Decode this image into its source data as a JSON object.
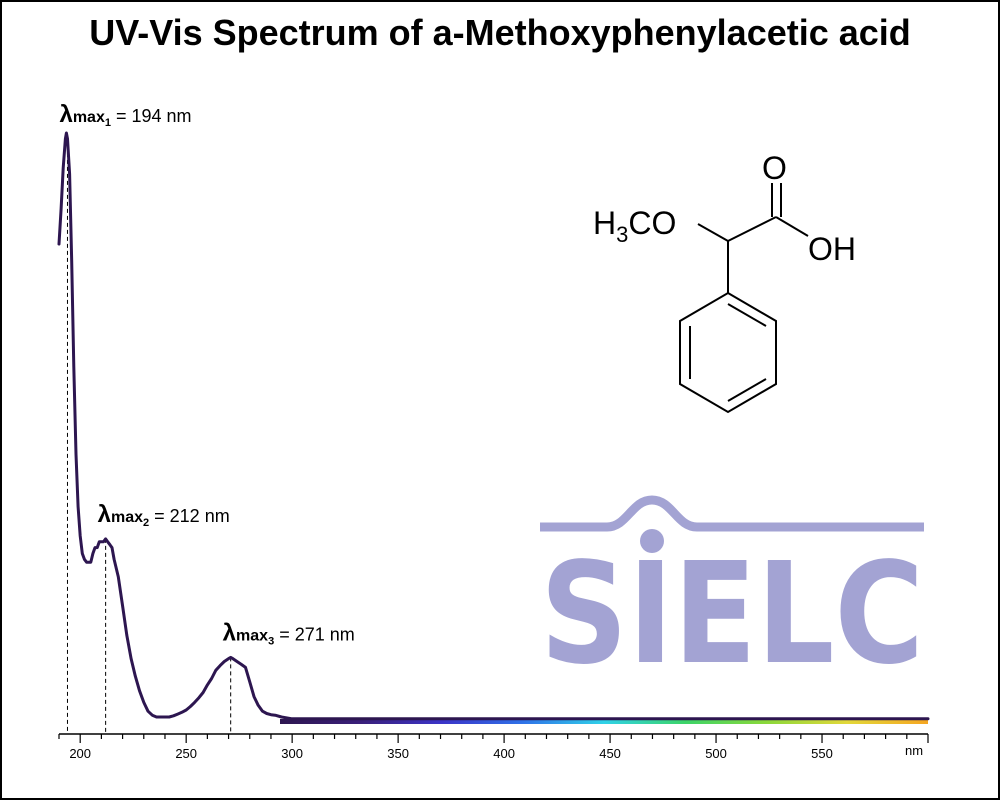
{
  "title": "UV-Vis Spectrum of a-Methoxyphenylacetic acid",
  "logo_text": "SIELC",
  "logo_color": "#a3a3d3",
  "molecule": {
    "group_left": "H3CO",
    "group_left_parts": [
      "H",
      "3",
      "CO"
    ],
    "carbonyl_o": "O",
    "hydroxyl": "OH"
  },
  "chart_data": {
    "type": "line",
    "title": "UV-Vis Spectrum of a-Methoxyphenylacetic acid",
    "xlabel": "nm",
    "ylabel": "",
    "xlim": [
      190,
      600
    ],
    "ylim": [
      0,
      1
    ],
    "x_ticks_labeled": [
      200,
      250,
      300,
      350,
      400,
      450,
      500,
      550
    ],
    "x_unit_label": "nm",
    "grid": false,
    "line_color": "#2d1650",
    "series": [
      {
        "x": [
          190,
          191,
          192,
          193,
          193.5,
          194,
          195,
          196,
          197,
          198,
          199,
          200,
          201,
          202,
          203,
          204,
          205,
          206,
          207,
          208,
          209,
          210,
          211,
          212,
          213,
          214,
          215,
          216,
          218,
          220,
          222,
          224,
          226,
          228,
          230,
          232,
          234,
          236,
          238,
          240,
          242,
          244,
          246,
          248,
          250,
          252,
          254,
          256,
          258,
          260,
          262,
          264,
          266,
          268,
          270,
          271,
          272,
          274,
          276,
          278,
          280,
          282,
          284,
          286,
          288,
          290,
          292,
          295,
          300,
          350,
          400,
          450,
          500,
          550,
          600
        ],
        "values": [
          0.81,
          0.87,
          0.94,
          0.99,
          1.0,
          0.99,
          0.93,
          0.78,
          0.6,
          0.45,
          0.36,
          0.31,
          0.28,
          0.27,
          0.265,
          0.265,
          0.265,
          0.28,
          0.29,
          0.29,
          0.3,
          0.3,
          0.3,
          0.305,
          0.3,
          0.295,
          0.29,
          0.27,
          0.24,
          0.19,
          0.14,
          0.1,
          0.07,
          0.045,
          0.025,
          0.01,
          0.003,
          0.0,
          0.0,
          0.0,
          0.0,
          0.002,
          0.005,
          0.008,
          0.012,
          0.018,
          0.025,
          0.033,
          0.042,
          0.055,
          0.066,
          0.08,
          0.088,
          0.095,
          0.1,
          0.102,
          0.1,
          0.095,
          0.09,
          0.085,
          0.06,
          0.035,
          0.02,
          0.01,
          0.006,
          0.004,
          0.003,
          0.0,
          -0.003,
          -0.003,
          -0.003,
          -0.003,
          -0.003,
          -0.003,
          -0.003
        ]
      }
    ],
    "annotations": [
      {
        "symbol": "λ",
        "sub_main": "max",
        "sub_index": "1",
        "text": " = 194 nm",
        "x": 194
      },
      {
        "symbol": "λ",
        "sub_main": "max",
        "sub_index": "2",
        "text": " = 212 nm",
        "x": 212
      },
      {
        "symbol": "λ",
        "sub_main": "max",
        "sub_index": "3",
        "text": " = 271 nm",
        "x": 271
      }
    ],
    "spectrum_bar_colors": [
      "#2d1650",
      "#3a1f7a",
      "#3b34c8",
      "#2f72e8",
      "#30d2e8",
      "#3cd468",
      "#8ad83a",
      "#e2d83a",
      "#f5a622"
    ]
  }
}
